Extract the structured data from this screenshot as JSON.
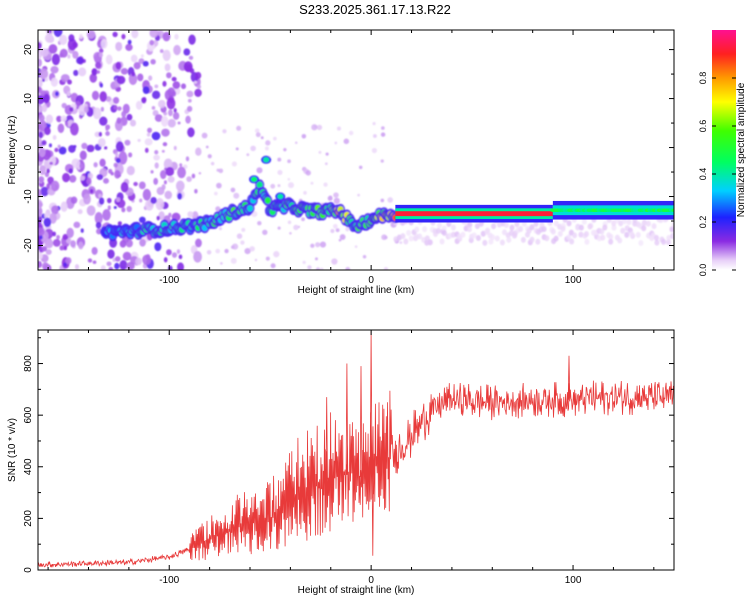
{
  "title": "S233.2025.361.17.13.R22",
  "chart_data": [
    {
      "type": "heatmap",
      "name": "spectrogram",
      "xlabel": "Height of straight line (km)",
      "ylabel": "Frequency (Hz)",
      "xlim": [
        -165,
        150
      ],
      "ylim": [
        -25,
        24
      ],
      "xticks": [
        -100,
        0,
        100
      ],
      "yticks": [
        -20,
        -10,
        0,
        10,
        20
      ],
      "colorbar": {
        "label": "Normalized spectral amplitude",
        "range": [
          0,
          1
        ],
        "ticks": [
          "0.0",
          "0.2",
          "0.4",
          "0.6",
          "0.8"
        ],
        "tick_values": [
          0.0,
          0.2,
          0.4,
          0.6,
          0.8
        ]
      },
      "ridge": {
        "x": [
          -130,
          -110,
          -100,
          -90,
          -80,
          -70,
          -60,
          -55,
          -50,
          -40,
          -30,
          -20,
          -15,
          -10,
          -5,
          0,
          5,
          12,
          40,
          60,
          80,
          90,
          100,
          120,
          148
        ],
        "frequency_hz": [
          -17.3,
          -16.8,
          -16.5,
          -16.0,
          -15.5,
          -13.5,
          -12.0,
          -8.0,
          -12.5,
          -12.0,
          -13.0,
          -13.0,
          -13.0,
          -15.5,
          -16.0,
          -14.5,
          -14.0,
          -13.5,
          -13.5,
          -13.5,
          -13.5,
          -13.5,
          -12.8,
          -12.8,
          -12.8
        ],
        "amplitude": [
          0.3,
          0.4,
          0.45,
          0.35,
          0.45,
          0.5,
          0.45,
          0.4,
          0.5,
          0.45,
          0.55,
          0.6,
          0.7,
          0.5,
          0.5,
          0.6,
          0.7,
          0.9,
          0.92,
          0.92,
          0.92,
          0.9,
          0.45,
          0.4,
          0.4
        ]
      }
    },
    {
      "type": "line",
      "name": "snr",
      "xlabel": "Height of straight line (km)",
      "ylabel": "SNR (10 * v/v)",
      "xlim": [
        -165,
        150
      ],
      "ylim": [
        0,
        930
      ],
      "xticks": [
        -100,
        0,
        100
      ],
      "yticks": [
        0,
        200,
        400,
        600,
        800
      ],
      "color": "#e83a3a",
      "envelope": {
        "x": [
          -165,
          -120,
          -100,
          -90,
          -80,
          -70,
          -60,
          -50,
          -40,
          -30,
          -20,
          -10,
          -5,
          0,
          5,
          10,
          20,
          30,
          40,
          60,
          80,
          100,
          120,
          150
        ],
        "y": [
          20,
          30,
          50,
          80,
          120,
          160,
          180,
          200,
          280,
          320,
          360,
          380,
          360,
          400,
          420,
          440,
          520,
          620,
          660,
          650,
          660,
          660,
          670,
          670
        ]
      },
      "spikes": [
        {
          "x": 0,
          "y": 925
        },
        {
          "x": -5,
          "y": 790
        },
        {
          "x": -22,
          "y": 670
        },
        {
          "x": -12,
          "y": 800
        },
        {
          "x": 98,
          "y": 830
        },
        {
          "x": 0.8,
          "y": 55
        }
      ]
    }
  ]
}
